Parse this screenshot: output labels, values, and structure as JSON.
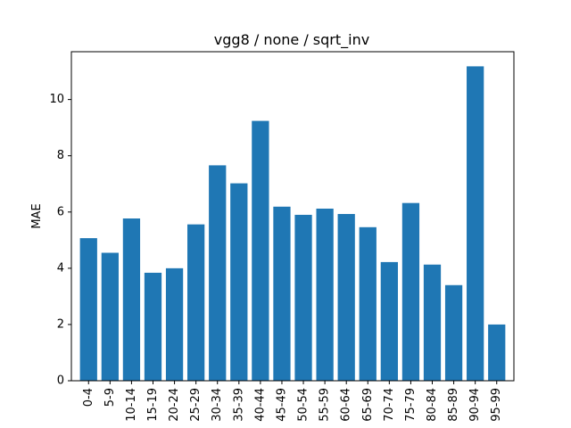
{
  "chart_data": {
    "type": "bar",
    "title": "vgg8 / none / sqrt_inv",
    "xlabel": "",
    "ylabel": "MAE",
    "categories": [
      "0-4",
      "5-9",
      "10-14",
      "15-19",
      "20-24",
      "25-29",
      "30-34",
      "35-39",
      "40-44",
      "45-49",
      "50-54",
      "55-59",
      "60-64",
      "65-69",
      "70-74",
      "75-79",
      "80-84",
      "85-89",
      "90-94",
      "95-99"
    ],
    "values": [
      5.07,
      4.55,
      5.77,
      3.84,
      4.0,
      5.56,
      7.66,
      7.02,
      9.24,
      6.19,
      5.9,
      6.12,
      5.93,
      5.46,
      4.22,
      6.32,
      4.13,
      3.4,
      11.18,
      2.0
    ],
    "ylim": [
      0,
      11.7
    ],
    "yticks": [
      0,
      2,
      4,
      6,
      8,
      10
    ],
    "bar_color": "#1f77b4",
    "grid": false,
    "legend": "none"
  }
}
